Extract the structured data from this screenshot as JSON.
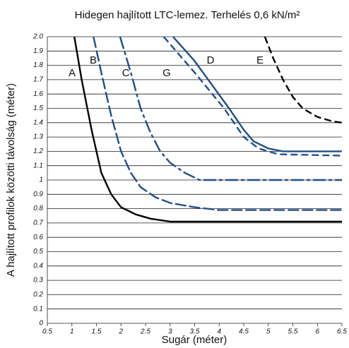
{
  "chart_data": {
    "type": "line",
    "title": "Hidegen hajlított LTC-lemez. Terhelés 0,6 kN/m²",
    "xlabel": "Sugár (méter)",
    "ylabel": "A hajlított profilok közötti távolság (méter)",
    "xlim": [
      0.5,
      6.5
    ],
    "ylim": [
      0,
      2
    ],
    "xticks": [
      0.5,
      1,
      1.5,
      2,
      2.5,
      3,
      3.5,
      4,
      4.5,
      5,
      5.5,
      6,
      6.5
    ],
    "yticks": [
      0,
      0.1,
      0.2,
      0.3,
      0.4,
      0.5,
      0.6,
      0.7,
      0.8,
      0.9,
      1,
      1.1,
      1.2,
      1.3,
      1.4,
      1.5,
      1.6,
      1.7,
      1.8,
      1.9,
      {
        "value": 2,
        "label": "2.0"
      }
    ],
    "grid": true,
    "series": [
      {
        "name": "A",
        "color": "#000000",
        "linestyle": "solid",
        "x": [
          1.05,
          1.2,
          1.4,
          1.6,
          1.8,
          2.0,
          2.3,
          2.6,
          3.0,
          6.5
        ],
        "values": [
          2.0,
          1.7,
          1.35,
          1.05,
          0.9,
          0.81,
          0.76,
          0.73,
          0.71,
          0.71
        ]
      },
      {
        "name": "B",
        "color": "#1f4e8c",
        "linestyle": "longdash",
        "x": [
          1.44,
          1.6,
          1.8,
          2.0,
          2.2,
          2.4,
          2.7,
          3.0,
          3.5,
          4.0,
          6.5
        ],
        "values": [
          2.0,
          1.75,
          1.45,
          1.2,
          1.05,
          0.95,
          0.88,
          0.84,
          0.81,
          0.79,
          0.79
        ]
      },
      {
        "name": "C",
        "color": "#1f4e8c",
        "linestyle": "dashdot",
        "x": [
          1.98,
          2.2,
          2.4,
          2.6,
          2.8,
          3.0,
          3.3,
          3.6,
          6.5
        ],
        "values": [
          2.0,
          1.75,
          1.5,
          1.33,
          1.2,
          1.12,
          1.05,
          1.0,
          1.0
        ]
      },
      {
        "name": "G",
        "color": "#1f4e8c",
        "linestyle": "dashed",
        "x": [
          2.87,
          3.5,
          4.1,
          4.5,
          4.8,
          5.2,
          6.5
        ],
        "values": [
          2.0,
          1.75,
          1.5,
          1.3,
          1.22,
          1.18,
          1.17
        ]
      },
      {
        "name": "D",
        "color": "#1f4e8c",
        "linestyle": "solid",
        "x": [
          3.06,
          3.5,
          4.2,
          4.5,
          4.7,
          5.0,
          5.3,
          6.5
        ],
        "values": [
          2.0,
          1.83,
          1.5,
          1.35,
          1.27,
          1.22,
          1.2,
          1.2
        ]
      },
      {
        "name": "E",
        "color": "#000000",
        "linestyle": "dashed",
        "x": [
          4.93,
          5.1,
          5.3,
          5.5,
          5.7,
          6.0,
          6.3,
          6.5
        ],
        "values": [
          2.0,
          1.85,
          1.7,
          1.58,
          1.5,
          1.44,
          1.41,
          1.4
        ]
      }
    ]
  }
}
